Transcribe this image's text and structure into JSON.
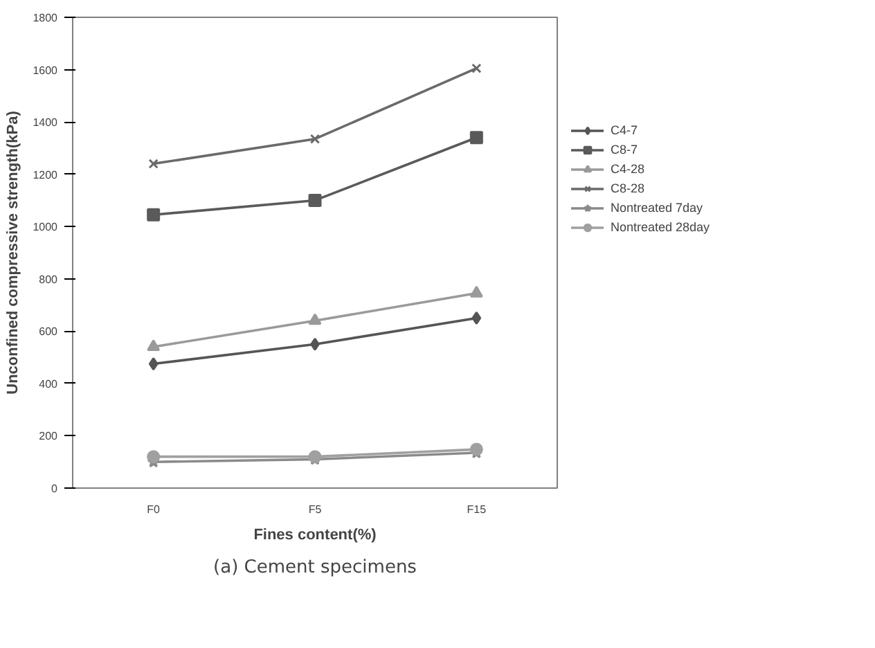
{
  "chart_data": {
    "type": "line",
    "xlabel": "Fines content(%)",
    "ylabel": "Unconfined compressive strength(kPa)",
    "categories": [
      "F0",
      "F5",
      "F15"
    ],
    "ylim": [
      0,
      1800
    ],
    "yticks": [
      0,
      200,
      400,
      600,
      800,
      1000,
      1200,
      1400,
      1600,
      1800
    ],
    "grid": false,
    "legend": "right",
    "line_style": "solid",
    "annotations": [
      "(a) Cement specimens"
    ],
    "series": [
      {
        "name": "C4-7",
        "color": "#555555",
        "marker": "diamond",
        "values": [
          475,
          550,
          650
        ]
      },
      {
        "name": "C8-7",
        "color": "#5a5a5a",
        "marker": "square",
        "values": [
          1045,
          1100,
          1340
        ]
      },
      {
        "name": "C4-28",
        "color": "#9a9a9a",
        "marker": "triangle",
        "values": [
          540,
          640,
          745
        ]
      },
      {
        "name": "C8-28",
        "color": "#6a6a6a",
        "marker": "cross",
        "values": [
          1240,
          1335,
          1605
        ]
      },
      {
        "name": "Nontreated 7day",
        "color": "#8a8a8a",
        "marker": "star",
        "values": [
          100,
          110,
          135
        ]
      },
      {
        "name": "Nontreated 28day",
        "color": "#a0a0a0",
        "marker": "circle",
        "values": [
          120,
          120,
          148
        ]
      }
    ]
  }
}
